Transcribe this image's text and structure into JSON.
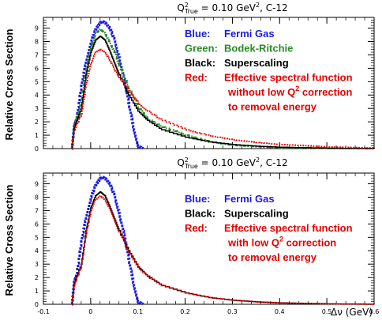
{
  "chart_data": [
    {
      "type": "line",
      "title_main": "Q",
      "title_sup": "2",
      "title_sub": "True",
      "title_rest": " = 0.10 GeV",
      "title_unit_sup": "2",
      "title_end": ", C-12",
      "ylabel": "Relative Cross Section",
      "xlabel": "",
      "xlim": [
        -0.1,
        0.6
      ],
      "ylim": [
        0,
        9.8
      ],
      "yticks": [
        "0",
        "1",
        "2",
        "3",
        "4",
        "5",
        "6",
        "7",
        "8",
        "9"
      ],
      "xticks": [],
      "legend": [
        {
          "key": "Blue:",
          "text": "Fermi Gas",
          "color": "#1a1ae6"
        },
        {
          "key": "Green:",
          "text": "Bodek-Ritchie",
          "color": "#2a8a2a"
        },
        {
          "key": "Black:",
          "text": "Superscaling",
          "color": "#000000"
        },
        {
          "key": "Red:",
          "text": "Effective spectral function",
          "color": "#e60000"
        },
        {
          "key": "",
          "text": "without low Q",
          "text_sup": "2",
          "text_end": " correction",
          "color": "#e60000"
        },
        {
          "key": "",
          "text": "to removal energy",
          "color": "#e60000"
        }
      ],
      "series": [
        {
          "name": "Fermi Gas",
          "color": "#1a1ae6",
          "x": [
            -0.04,
            -0.035,
            -0.03,
            -0.02,
            -0.01,
            0,
            0.01,
            0.02,
            0.025,
            0.03,
            0.04,
            0.05,
            0.06,
            0.07,
            0.08,
            0.09,
            0.1,
            0.11
          ],
          "y": [
            0,
            1.7,
            2.2,
            4.8,
            6.5,
            8.0,
            8.9,
            9.4,
            9.5,
            9.4,
            9.0,
            8.1,
            6.8,
            5.2,
            3.4,
            1.6,
            0.2,
            0
          ]
        },
        {
          "name": "Bodek-Ritchie",
          "color": "#2a8a2a",
          "x": [
            -0.04,
            -0.035,
            -0.02,
            -0.01,
            0,
            0.01,
            0.02,
            0.03,
            0.04,
            0.05,
            0.06,
            0.08,
            0.1,
            0.12,
            0.15,
            0.2,
            0.25,
            0.3,
            0.35,
            0.4,
            0.5,
            0.6
          ],
          "y": [
            0,
            1.8,
            3.5,
            6.0,
            7.6,
            8.6,
            8.9,
            8.6,
            7.9,
            7.2,
            6.2,
            4.5,
            3.1,
            2.2,
            1.6,
            1.0,
            0.5,
            0.25,
            0.15,
            0.08,
            0.02,
            0
          ]
        },
        {
          "name": "Superscaling",
          "color": "#000000",
          "x": [
            -0.04,
            -0.035,
            -0.02,
            -0.01,
            0,
            0.01,
            0.02,
            0.03,
            0.04,
            0.05,
            0.06,
            0.08,
            0.1,
            0.12,
            0.15,
            0.2,
            0.25,
            0.3,
            0.35,
            0.4,
            0.5,
            0.6
          ],
          "y": [
            0,
            1.6,
            3.0,
            5.5,
            7.2,
            8.1,
            8.4,
            8.1,
            7.3,
            6.4,
            5.5,
            4.0,
            2.8,
            2.1,
            1.4,
            0.85,
            0.5,
            0.3,
            0.18,
            0.1,
            0.03,
            0
          ]
        },
        {
          "name": "Effective spectral function",
          "color": "#e60000",
          "x": [
            -0.04,
            -0.035,
            -0.02,
            -0.01,
            0,
            0.01,
            0.02,
            0.03,
            0.04,
            0.05,
            0.06,
            0.08,
            0.1,
            0.12,
            0.15,
            0.2,
            0.25,
            0.3,
            0.35,
            0.4,
            0.5,
            0.6
          ],
          "y": [
            0,
            1.4,
            2.6,
            4.8,
            6.4,
            7.2,
            7.4,
            7.2,
            6.6,
            5.9,
            5.3,
            4.3,
            3.4,
            2.8,
            2.1,
            1.4,
            0.95,
            0.65,
            0.45,
            0.3,
            0.12,
            0.05
          ]
        }
      ]
    },
    {
      "type": "line",
      "title_main": "Q",
      "title_sup": "2",
      "title_sub": "True",
      "title_rest": " = 0.10 GeV",
      "title_unit_sup": "2",
      "title_end": ", C-12",
      "ylabel": "Relative Cross Section",
      "xlabel": "Δν (GeV)",
      "xlim": [
        -0.1,
        0.6
      ],
      "ylim": [
        0,
        9.8
      ],
      "yticks": [
        "0",
        "1",
        "2",
        "3",
        "4",
        "5",
        "6",
        "7",
        "8",
        "9"
      ],
      "xticks": [
        "-0.1",
        "0",
        "0.1",
        "0.2",
        "0.3",
        "0.4",
        "0.5",
        "0.6"
      ],
      "legend": [
        {
          "key": "Blue:",
          "text": "Fermi Gas",
          "color": "#1a1ae6"
        },
        {
          "key": "Black:",
          "text": "Superscaling",
          "color": "#000000"
        },
        {
          "key": "Red:",
          "text": "Effective spectral function",
          "color": "#e60000"
        },
        {
          "key": "",
          "text": "with low Q",
          "text_sup": "2",
          "text_end": " correction",
          "color": "#e60000"
        },
        {
          "key": "",
          "text": "to removal energy",
          "color": "#e60000"
        }
      ],
      "series": [
        {
          "name": "Fermi Gas",
          "color": "#1a1ae6",
          "x": [
            -0.04,
            -0.035,
            -0.03,
            -0.02,
            -0.01,
            0,
            0.01,
            0.02,
            0.025,
            0.03,
            0.04,
            0.05,
            0.06,
            0.07,
            0.08,
            0.09,
            0.1,
            0.11
          ],
          "y": [
            0,
            1.7,
            2.2,
            4.8,
            6.5,
            8.0,
            8.9,
            9.4,
            9.5,
            9.4,
            9.0,
            8.1,
            6.8,
            5.2,
            3.4,
            1.6,
            0.2,
            0
          ]
        },
        {
          "name": "Superscaling",
          "color": "#000000",
          "x": [
            -0.04,
            -0.035,
            -0.02,
            -0.01,
            0,
            0.01,
            0.02,
            0.03,
            0.04,
            0.05,
            0.06,
            0.08,
            0.1,
            0.12,
            0.15,
            0.2,
            0.25,
            0.3,
            0.35,
            0.4,
            0.5,
            0.6
          ],
          "y": [
            0,
            1.6,
            3.0,
            5.5,
            7.2,
            8.1,
            8.4,
            8.1,
            7.3,
            6.4,
            5.5,
            4.0,
            2.8,
            2.1,
            1.4,
            0.85,
            0.5,
            0.3,
            0.18,
            0.1,
            0.03,
            0
          ]
        },
        {
          "name": "Effective spectral function",
          "color": "#e60000",
          "x": [
            -0.04,
            -0.035,
            -0.02,
            -0.01,
            0,
            0.01,
            0.02,
            0.03,
            0.04,
            0.05,
            0.06,
            0.08,
            0.1,
            0.12,
            0.15,
            0.2,
            0.25,
            0.3,
            0.35,
            0.4,
            0.5,
            0.6
          ],
          "y": [
            0,
            1.5,
            2.9,
            5.3,
            7.0,
            7.8,
            8.1,
            7.8,
            7.1,
            6.2,
            5.4,
            3.9,
            2.75,
            2.05,
            1.4,
            0.85,
            0.5,
            0.3,
            0.18,
            0.1,
            0.03,
            0
          ]
        }
      ]
    }
  ]
}
